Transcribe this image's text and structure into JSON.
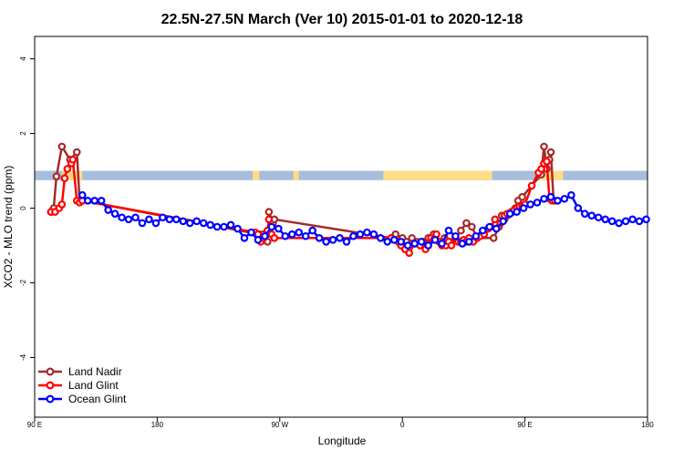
{
  "chart_data": {
    "type": "line",
    "title": "22.5N-27.5N March (Ver 10)   2015-01-01 to 2020-12-18",
    "xlabel": "Longitude",
    "ylabel": "XCO2 - MLO trend (ppm)",
    "xlim": [
      0,
      450
    ],
    "ylim": [
      -5.6,
      4.6
    ],
    "x_ticks": [
      {
        "value": 0,
        "label": "90 E"
      },
      {
        "value": 90,
        "label": "180"
      },
      {
        "value": 180,
        "label": "90 W"
      },
      {
        "value": 270,
        "label": "0"
      },
      {
        "value": 360,
        "label": "90 E"
      },
      {
        "value": 450,
        "label": "180"
      }
    ],
    "y_ticks": [
      4,
      2,
      0,
      -2,
      -4
    ],
    "y_tick_labels": [
      "4",
      "2",
      "0",
      "-2",
      "-4"
    ],
    "grid": false,
    "legend_position": "bottom-left",
    "land_band": {
      "y_range": [
        0.75,
        1.0
      ],
      "ocean_color": "#a6bddb",
      "land_color": "#fddc86",
      "land_segments": [
        [
          20,
          35
        ],
        [
          160,
          165
        ],
        [
          190,
          194
        ],
        [
          256,
          336
        ],
        [
          371,
          388
        ]
      ]
    },
    "series": [
      {
        "name": "Land Nadir",
        "color": "#a52a2a",
        "x": [
          12,
          14,
          16,
          20,
          26,
          31,
          33,
          35,
          165,
          166,
          168,
          171,
          172,
          175,
          176,
          262,
          265,
          270,
          273,
          277,
          281,
          285,
          289,
          293,
          297,
          301,
          305,
          309,
          313,
          317,
          321,
          325,
          337,
          341,
          343,
          345,
          347,
          351,
          353,
          355,
          358,
          372,
          374,
          376,
          378,
          379,
          381
        ],
        "y": [
          -0.1,
          0.0,
          0.85,
          1.65,
          1.3,
          1.5,
          0.2,
          0.2,
          -0.7,
          -0.8,
          -0.7,
          -0.9,
          -0.1,
          -0.4,
          -0.3,
          -0.8,
          -0.7,
          -0.8,
          -0.9,
          -0.8,
          -0.9,
          -0.9,
          -0.8,
          -0.7,
          -0.9,
          -0.8,
          -0.9,
          -0.8,
          -0.6,
          -0.4,
          -0.5,
          -0.8,
          -0.8,
          -0.5,
          -0.2,
          -0.3,
          -0.2,
          -0.1,
          0.0,
          0.2,
          0.3,
          0.9,
          1.65,
          1.05,
          1.3,
          1.5,
          0.2
        ],
        "show_legend": true
      },
      {
        "name": "Land Glint",
        "color": "#ff0000",
        "x": [
          12,
          15,
          18,
          20,
          22,
          24,
          27,
          28,
          31,
          33,
          35,
          162,
          164,
          166,
          168,
          171,
          172,
          174,
          176,
          262,
          264,
          267,
          269,
          272,
          275,
          279,
          283,
          285,
          287,
          289,
          291,
          293,
          295,
          297,
          299,
          302,
          304,
          306,
          309,
          311,
          313,
          315,
          317,
          319,
          322,
          325,
          327,
          330,
          333,
          335,
          338,
          342,
          345,
          347,
          350,
          352,
          354,
          356,
          358,
          360,
          365,
          370,
          372,
          374,
          376,
          378,
          380,
          382
        ],
        "y": [
          -0.1,
          -0.1,
          0.0,
          0.1,
          0.8,
          1.05,
          1.2,
          1.3,
          0.2,
          0.15,
          0.2,
          -0.65,
          -0.7,
          -0.9,
          -0.8,
          -0.6,
          -0.3,
          -0.7,
          -0.8,
          -0.8,
          -0.85,
          -0.9,
          -1.0,
          -1.1,
          -1.2,
          -0.95,
          -1.0,
          -0.9,
          -1.1,
          -1.0,
          -0.8,
          -0.85,
          -0.7,
          -0.9,
          -1.0,
          -1.0,
          -0.9,
          -1.0,
          -0.8,
          -0.9,
          -0.9,
          -0.85,
          -0.9,
          -0.8,
          -0.9,
          -0.8,
          -0.75,
          -0.7,
          -0.55,
          -0.5,
          -0.3,
          -0.4,
          -0.2,
          -0.15,
          -0.1,
          -0.05,
          0.0,
          0.05,
          0.05,
          0.1,
          0.6,
          0.95,
          1.05,
          1.2,
          1.25,
          0.25,
          0.2,
          0.2
        ],
        "show_legend": true
      },
      {
        "name": "Ocean Glint",
        "color": "#0000ff",
        "x": [
          35,
          39,
          44,
          49,
          54,
          59,
          64,
          69,
          74,
          79,
          84,
          89,
          94,
          99,
          104,
          109,
          114,
          119,
          124,
          129,
          134,
          139,
          144,
          149,
          154,
          159,
          164,
          169,
          174,
          179,
          184,
          189,
          194,
          199,
          204,
          209,
          214,
          219,
          224,
          229,
          234,
          239,
          244,
          249,
          254,
          259,
          264,
          269,
          274,
          279,
          284,
          289,
          294,
          299,
          304,
          309,
          314,
          319,
          324,
          329,
          334,
          339,
          344,
          349,
          354,
          359,
          364,
          369,
          374,
          379,
          384,
          389,
          394,
          399,
          404,
          409,
          414,
          419,
          424,
          429,
          434,
          439,
          444,
          449
        ],
        "y": [
          0.35,
          0.2,
          0.2,
          0.2,
          -0.05,
          -0.15,
          -0.25,
          -0.3,
          -0.25,
          -0.4,
          -0.3,
          -0.4,
          -0.25,
          -0.3,
          -0.3,
          -0.35,
          -0.4,
          -0.35,
          -0.4,
          -0.45,
          -0.5,
          -0.5,
          -0.45,
          -0.55,
          -0.8,
          -0.65,
          -0.85,
          -0.75,
          -0.5,
          -0.55,
          -0.75,
          -0.7,
          -0.65,
          -0.75,
          -0.6,
          -0.8,
          -0.9,
          -0.85,
          -0.8,
          -0.9,
          -0.75,
          -0.7,
          -0.65,
          -0.7,
          -0.8,
          -0.9,
          -0.85,
          -0.9,
          -1.0,
          -0.95,
          -0.9,
          -1.0,
          -0.85,
          -0.95,
          -0.6,
          -0.75,
          -0.95,
          -0.9,
          -0.75,
          -0.6,
          -0.5,
          -0.55,
          -0.35,
          -0.15,
          -0.1,
          0.0,
          0.1,
          0.15,
          0.25,
          0.3,
          0.2,
          0.25,
          0.35,
          0.0,
          -0.15,
          -0.2,
          -0.25,
          -0.3,
          -0.35,
          -0.4,
          -0.35,
          -0.3,
          -0.35,
          -0.3
        ],
        "show_legend": true
      }
    ]
  }
}
